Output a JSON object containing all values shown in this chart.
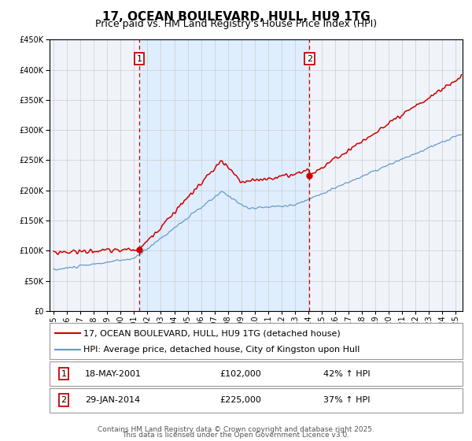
{
  "title": "17, OCEAN BOULEVARD, HULL, HU9 1TG",
  "subtitle": "Price paid vs. HM Land Registry's House Price Index (HPI)",
  "ylim": [
    0,
    450000
  ],
  "yticks": [
    0,
    50000,
    100000,
    150000,
    200000,
    250000,
    300000,
    350000,
    400000,
    450000
  ],
  "ytick_labels": [
    "£0",
    "£50K",
    "£100K",
    "£150K",
    "£200K",
    "£250K",
    "£300K",
    "£350K",
    "£400K",
    "£450K"
  ],
  "x_start_year": 1995,
  "x_end_year": 2025,
  "sale1_date": 2001.38,
  "sale1_price": 102000,
  "sale1_label": "1",
  "sale1_text": "18-MAY-2001",
  "sale1_price_text": "£102,000",
  "sale1_hpi_text": "42% ↑ HPI",
  "sale2_date": 2014.08,
  "sale2_price": 225000,
  "sale2_label": "2",
  "sale2_text": "29-JAN-2014",
  "sale2_price_text": "£225,000",
  "sale2_hpi_text": "37% ↑ HPI",
  "red_line_color": "#cc0000",
  "blue_line_color": "#6699cc",
  "shade_color": "#ddeeff",
  "vline_color": "#cc0000",
  "marker_box_color": "#cc0000",
  "bg_color": "#ffffff",
  "plot_bg_color": "#f0f4fa",
  "grid_color": "#cccccc",
  "legend1": "17, OCEAN BOULEVARD, HULL, HU9 1TG (detached house)",
  "legend2": "HPI: Average price, detached house, City of Kingston upon Hull",
  "footer_line1": "Contains HM Land Registry data © Crown copyright and database right 2025.",
  "footer_line2": "This data is licensed under the Open Government Licence v3.0.",
  "title_fontsize": 11,
  "subtitle_fontsize": 9,
  "axis_fontsize": 7,
  "legend_fontsize": 8,
  "table_fontsize": 8,
  "footer_fontsize": 6.5
}
